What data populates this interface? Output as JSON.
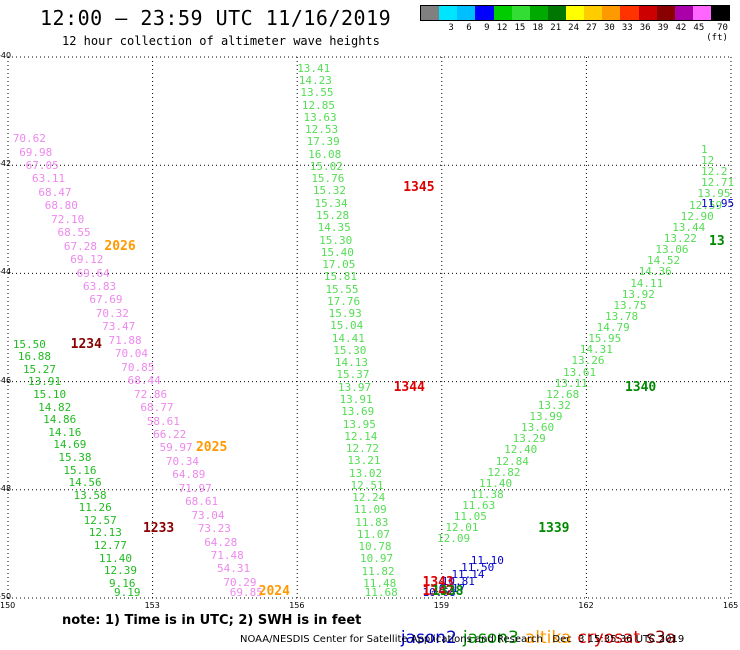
{
  "title": "12:00 – 23:59 UTC 11/16/2019",
  "subtitle": "12 hour collection of altimeter wave heights",
  "color_scale": {
    "unit": "(ft)",
    "colors": [
      "#808080",
      "#00e5ff",
      "#00bfff",
      "#0000ff",
      "#00cc00",
      "#33dd33",
      "#00aa00",
      "#007700",
      "#ffff00",
      "#ffcc00",
      "#ff9900",
      "#ff3300",
      "#cc0000",
      "#880000",
      "#aa00aa",
      "#ff66ff",
      "#000000"
    ],
    "labels": [
      "3",
      "6",
      "9",
      "12",
      "15",
      "18",
      "21",
      "24",
      "27",
      "30",
      "33",
      "36",
      "39",
      "42",
      "45",
      "70"
    ]
  },
  "axes": {
    "x_ticks": [
      "150",
      "153",
      "156",
      "159",
      "162",
      "165"
    ],
    "y_ticks": [
      "-40",
      "-42",
      "-44",
      "-46",
      "-48",
      "-50"
    ],
    "xlim": [
      150,
      165
    ],
    "ylim": [
      -50,
      -40
    ]
  },
  "satellites": {
    "jason2": "#0000cc",
    "jason3": "#008800",
    "altika": "#ff9900",
    "cryosat": "#dd0000",
    "s3a": "#880000"
  },
  "passes": [
    {
      "label": "2026",
      "lon": 152.0,
      "lat": -43.5,
      "color": "#ff9900"
    },
    {
      "label": "2025",
      "lon": 153.9,
      "lat": -47.2,
      "color": "#ff9900"
    },
    {
      "label": "2024",
      "lon": 155.2,
      "lat": -49.95,
      "color": "#ff9900"
    },
    {
      "label": "1234",
      "lon": 151.3,
      "lat": -45.3,
      "color": "#880000"
    },
    {
      "label": "1233",
      "lon": 152.8,
      "lat": -48.7,
      "color": "#880000"
    },
    {
      "label": "1345",
      "lon": 158.2,
      "lat": -42.4,
      "color": "#dd0000"
    },
    {
      "label": "1344",
      "lon": 158.0,
      "lat": -46.1,
      "color": "#dd0000"
    },
    {
      "label": "1343",
      "lon": 158.6,
      "lat": -49.7,
      "color": "#dd0000"
    },
    {
      "label": "1342",
      "lon": 158.6,
      "lat": -49.95,
      "color": "#dd0000"
    },
    {
      "label": "1339",
      "lon": 161.0,
      "lat": -48.7,
      "color": "#008800"
    },
    {
      "label": "1340",
      "lon": 162.8,
      "lat": -46.1,
      "color": "#008800"
    },
    {
      "label": "1338",
      "lon": 158.8,
      "lat": -49.98,
      "color": "#008800"
    },
    {
      "label": "13",
      "lon": 164.9,
      "lat": -43.4,
      "color": "#008800"
    }
  ],
  "tracks": [
    {
      "color": "#ee88ee",
      "values": [
        "70.62",
        "69.98",
        "67.05",
        "63.11",
        "68.47",
        "68.80",
        "72.10",
        "68.55",
        "67.28",
        "69.12",
        "69.64",
        "63.83",
        "67.69",
        "70.32",
        "73.47",
        "71.88",
        "70.04",
        "70.85",
        "68.44",
        "72.86",
        "68.77",
        "58.61",
        "66.22",
        "59.97",
        "70.34",
        "64.89",
        "71.97",
        "68.61",
        "73.04",
        "73.23",
        "64.28",
        "71.48",
        "54.31",
        "70.29",
        "69.85"
      ],
      "start": [
        150.1,
        -41.5
      ],
      "end": [
        154.6,
        -49.95
      ]
    },
    {
      "color": "#22bb22",
      "values": [
        "15.50",
        "16.88",
        "15.27",
        "13.91",
        "15.10",
        "14.82",
        "14.86",
        "14.16",
        "14.69",
        "15.38",
        "15.16",
        "14.56",
        "13.58",
        "11.26",
        "12.57",
        "12.13",
        "12.77",
        "11.40",
        "12.39",
        "9.16",
        "9.19"
      ],
      "start": [
        150.1,
        -45.3
      ],
      "end": [
        152.2,
        -49.95
      ]
    },
    {
      "color": "#55dd55",
      "values": [
        "13.41",
        "14.23",
        "13.55",
        "12.85",
        "13.63",
        "12.53",
        "17.39",
        "16.08",
        "15.02",
        "15.76",
        "15.32",
        "15.34",
        "15.28",
        "14.35",
        "15.30",
        "15.40",
        "17.05",
        "15.81",
        "15.55",
        "17.76",
        "15.93",
        "15.04",
        "14.41",
        "15.30",
        "14.13",
        "15.37",
        "13.97",
        "13.91",
        "13.69",
        "13.95",
        "12.14",
        "12.72",
        "13.21",
        "13.02",
        "12.51",
        "12.24",
        "11.09",
        "11.83",
        "11.07",
        "10.78",
        "10.97",
        "11.82",
        "11.48",
        "11.68"
      ],
      "start": [
        156.0,
        -40.2
      ],
      "end": [
        157.4,
        -49.95
      ]
    },
    {
      "color": "#55dd55",
      "values": [
        "12.09",
        "12.01",
        "11.05",
        "11.63",
        "11.38",
        "11.40",
        "12.82",
        "12.84",
        "12.40",
        "13.29",
        "13.60",
        "13.99",
        "13.32",
        "12.68",
        "13.11",
        "13.61",
        "13.26",
        "14.31",
        "15.95",
        "14.79",
        "13.78",
        "13.75",
        "13.92",
        "14.11",
        "14.36",
        "14.52",
        "13.06",
        "13.22",
        "13.44",
        "12.90",
        "12.59",
        "13.95",
        "12.71",
        "12.2",
        "12",
        "1"
      ],
      "start": [
        158.9,
        -48.9
      ],
      "end": [
        165.0,
        -41.7
      ]
    },
    {
      "color": "#0000cc",
      "values": [
        "11.10",
        "11.50",
        "11.14",
        "10.81",
        "10.17",
        "10.68"
      ],
      "start": [
        159.6,
        -49.3
      ],
      "end": [
        158.6,
        -49.95
      ]
    },
    {
      "color": "#0000cc",
      "values": [
        "11.95"
      ],
      "start": [
        164.5,
        -42.7
      ],
      "end": [
        164.5,
        -42.7
      ]
    }
  ],
  "note": "note: 1) Time is in UTC; 2) SWH is in feet",
  "legend": [
    "jason2",
    "jason3",
    "altika",
    "cryosat",
    "s3a"
  ],
  "footer": "NOAA/NESDIS Center for Satellite Applications and Research   Dec  3 15:35:36 UTC 2019"
}
